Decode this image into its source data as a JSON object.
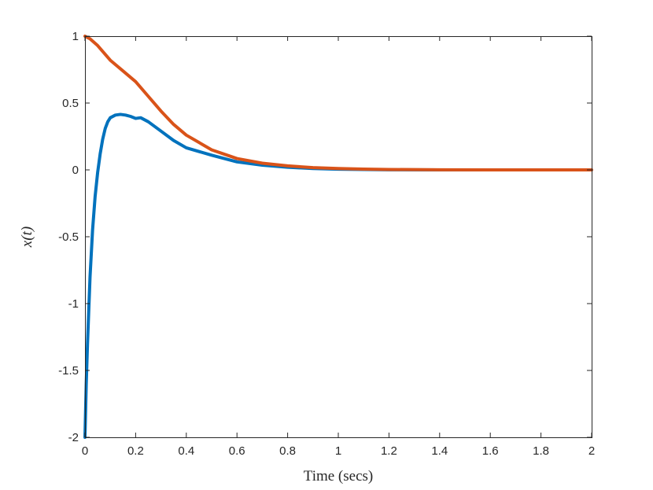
{
  "chart_data": {
    "type": "line",
    "title": "",
    "xlabel": "Time (secs)",
    "ylabel": "x(t)",
    "xlim": [
      0,
      2
    ],
    "ylim": [
      -2,
      1
    ],
    "xticks": [
      0,
      0.2,
      0.4,
      0.6,
      0.8,
      1,
      1.2,
      1.4,
      1.6,
      1.8,
      2
    ],
    "xtick_labels": [
      "0",
      "0.2",
      "0.4",
      "0.6",
      "0.8",
      "1",
      "1.2",
      "1.4",
      "1.6",
      "1.8",
      "2"
    ],
    "yticks": [
      -2,
      -1.5,
      -1,
      -0.5,
      0,
      0.5,
      1
    ],
    "ytick_labels": [
      "-2",
      "-1.5",
      "-1",
      "-0.5",
      "0",
      "0.5",
      "1"
    ],
    "grid": false,
    "legend": "none",
    "series": [
      {
        "color": "#0072BD",
        "x": [
          0,
          0.005,
          0.01,
          0.02,
          0.03,
          0.04,
          0.05,
          0.06,
          0.07,
          0.08,
          0.09,
          0.1,
          0.12,
          0.14,
          0.16,
          0.18,
          0.2,
          0.22,
          0.25,
          0.3,
          0.35,
          0.4,
          0.5,
          0.6,
          0.7,
          0.8,
          0.9,
          1.0,
          1.1,
          1.2,
          1.4,
          1.6,
          1.8,
          2.0
        ],
        "y": [
          -2,
          -1.6,
          -1.3,
          -0.8,
          -0.45,
          -0.2,
          -0.02,
          0.12,
          0.23,
          0.31,
          0.36,
          0.39,
          0.41,
          0.415,
          0.41,
          0.4,
          0.385,
          0.39,
          0.36,
          0.29,
          0.22,
          0.165,
          0.11,
          0.06,
          0.035,
          0.02,
          0.01,
          0.005,
          0.003,
          0.001,
          0,
          0,
          0,
          0
        ]
      },
      {
        "color": "#D95319",
        "x": [
          0,
          0.02,
          0.05,
          0.1,
          0.15,
          0.2,
          0.25,
          0.3,
          0.35,
          0.4,
          0.5,
          0.6,
          0.7,
          0.8,
          0.9,
          1.0,
          1.1,
          1.2,
          1.4,
          1.6,
          1.8,
          2.0
        ],
        "y": [
          1,
          0.98,
          0.93,
          0.82,
          0.74,
          0.66,
          0.55,
          0.44,
          0.34,
          0.26,
          0.15,
          0.085,
          0.05,
          0.03,
          0.017,
          0.01,
          0.006,
          0.003,
          0.001,
          0,
          0,
          0
        ]
      }
    ]
  }
}
